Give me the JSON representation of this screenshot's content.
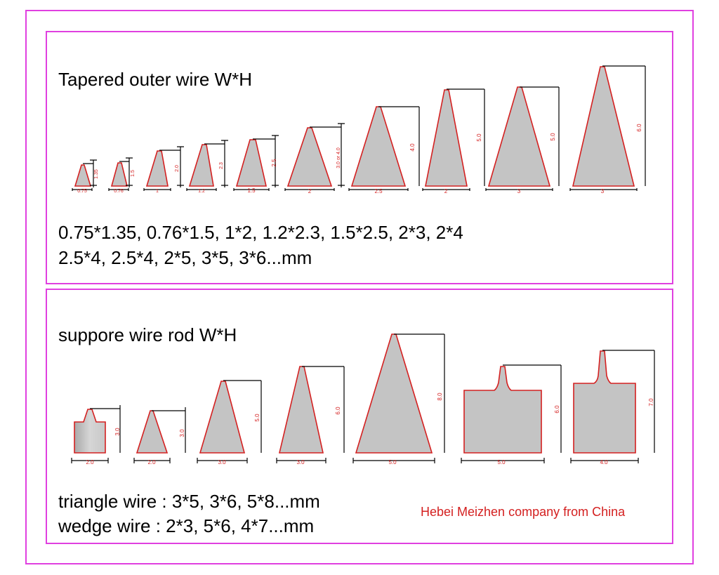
{
  "tapered": {
    "title": "Tapered outer wire   W*H",
    "line1": "0.75*1.35, 0.76*1.5, 1*2, 1.2*2.3, 1.5*2.5, 2*3, 2*4",
    "line2": "2.5*4, 2.5*4, 2*5, 3*5, 3*6...mm",
    "profiles": [
      {
        "w": "0.75",
        "h": "1.35"
      },
      {
        "w": "0.76",
        "h": "1.5"
      },
      {
        "w": "1",
        "h": "2.0"
      },
      {
        "w": "1.2",
        "h": "2.3"
      },
      {
        "w": "1.5",
        "h": "2.5"
      },
      {
        "w": "2",
        "h": "3.0 or 4.0"
      },
      {
        "w": "2.5",
        "h": "4.0"
      },
      {
        "w": "2",
        "h": "5.0"
      },
      {
        "w": "3",
        "h": "5.0"
      },
      {
        "w": "3",
        "h": "6.0"
      }
    ]
  },
  "support": {
    "title": "suppore wire rod   W*H",
    "line1": "triangle wire : 3*5, 3*6, 5*8...mm",
    "line2": "wedge wire : 2*3, 5*6, 4*7...mm",
    "profiles": [
      {
        "w": "2.0",
        "h": "3.0"
      },
      {
        "w": "2.0",
        "h": "3.0"
      },
      {
        "w": "3.0",
        "h": "5.0"
      },
      {
        "w": "3.0",
        "h": "6.0"
      },
      {
        "w": "5.0",
        "h": "8.0"
      },
      {
        "w": "5.0",
        "h": "6.0"
      },
      {
        "w": "4.0",
        "h": "7.0"
      }
    ]
  },
  "credit": "Hebei Meizhen company from China",
  "colors": {
    "frame": "#e040e0",
    "outline": "#d42020",
    "fill": "#c4c4c4"
  }
}
